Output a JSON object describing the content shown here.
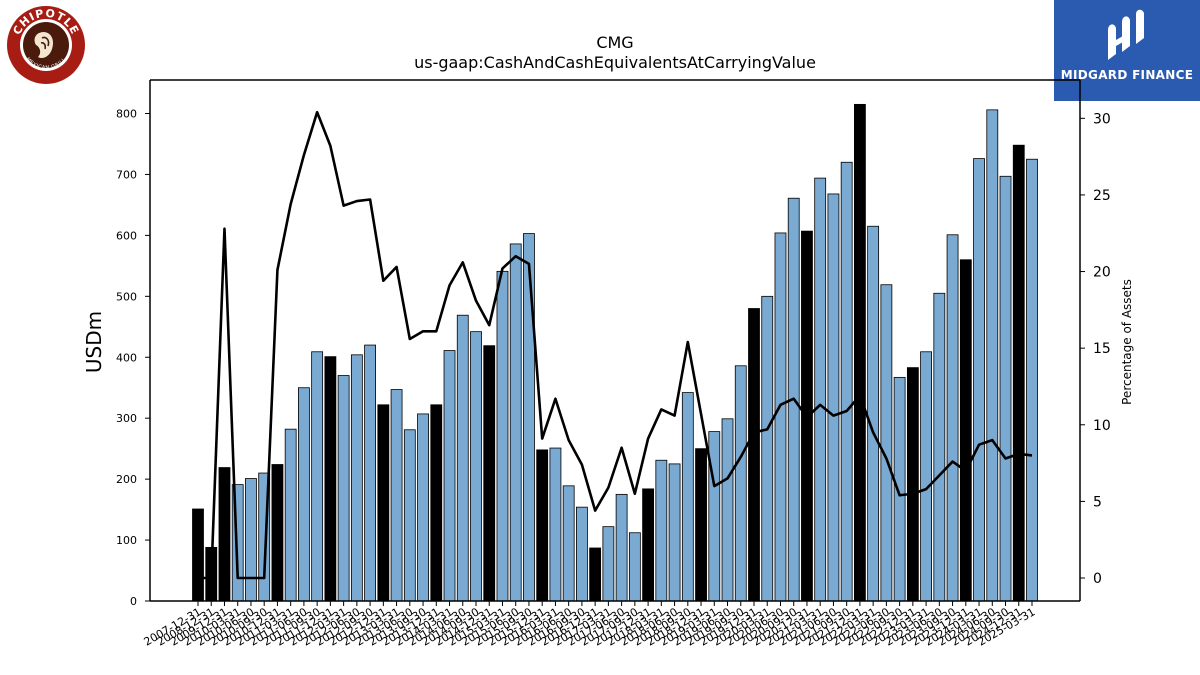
{
  "logos": {
    "left_text": "CHIPOTLE",
    "left_subtext": "MEXICAN GRILL",
    "right_text": "MIDGARD FINANCE"
  },
  "chart_data": {
    "type": "bar",
    "title": "CMG",
    "subtitle": "us-gaap:CashAndCashEquivalentsAtCarryingValue",
    "ylabel": "USDm",
    "y2label": "Percentage of Assets",
    "ylim": [
      0,
      855
    ],
    "y2lim": [
      -1.5,
      32.5
    ],
    "yticks": [
      0,
      100,
      200,
      300,
      400,
      500,
      600,
      700,
      800
    ],
    "y2ticks": [
      0,
      5,
      10,
      15,
      20,
      25,
      30
    ],
    "colors": {
      "annual": "#000000",
      "quarterly": "#7aaad2",
      "line": "#000000"
    },
    "categories": [
      "2007-12-31",
      "2008-12-31",
      "2009-12-31",
      "2010-03-31",
      "2010-06-30",
      "2010-09-30",
      "2010-12-31",
      "2011-03-31",
      "2011-06-30",
      "2011-09-30",
      "2011-12-31",
      "2012-03-31",
      "2012-06-30",
      "2012-09-30",
      "2012-12-31",
      "2013-03-31",
      "2013-06-30",
      "2013-09-30",
      "2013-12-31",
      "2014-03-31",
      "2014-06-30",
      "2014-09-30",
      "2014-12-31",
      "2015-03-31",
      "2015-06-30",
      "2015-09-30",
      "2015-12-31",
      "2016-03-31",
      "2016-06-30",
      "2016-09-30",
      "2016-12-31",
      "2017-03-31",
      "2017-06-30",
      "2017-09-30",
      "2017-12-31",
      "2018-03-31",
      "2018-06-30",
      "2018-09-30",
      "2018-12-31",
      "2019-03-31",
      "2019-06-30",
      "2019-09-30",
      "2019-12-31",
      "2020-03-31",
      "2020-06-30",
      "2020-09-30",
      "2020-12-31",
      "2021-03-31",
      "2021-06-30",
      "2021-09-30",
      "2021-12-31",
      "2022-03-31",
      "2022-06-30",
      "2022-09-30",
      "2022-12-31",
      "2023-03-31",
      "2023-06-30",
      "2023-09-30",
      "2023-12-31",
      "2024-03-31",
      "2024-06-30",
      "2024-09-30",
      "2024-12-31",
      "2025-03-31"
    ],
    "annual": [
      true,
      true,
      true,
      false,
      false,
      false,
      true,
      false,
      false,
      false,
      true,
      false,
      false,
      false,
      true,
      false,
      false,
      false,
      true,
      false,
      false,
      false,
      true,
      false,
      false,
      false,
      true,
      false,
      false,
      false,
      true,
      false,
      false,
      false,
      true,
      false,
      false,
      false,
      true,
      false,
      false,
      false,
      true,
      false,
      false,
      false,
      true,
      false,
      false,
      false,
      true,
      false,
      false,
      false,
      true,
      false,
      false,
      false,
      true,
      false,
      false,
      false,
      true,
      false
    ],
    "values": [
      151,
      88,
      219,
      191,
      201,
      210,
      224,
      282,
      350,
      409,
      401,
      370,
      404,
      420,
      322,
      347,
      281,
      307,
      322,
      411,
      469,
      442,
      419,
      541,
      586,
      603,
      248,
      251,
      189,
      154,
      87,
      122,
      175,
      112,
      184,
      231,
      225,
      342,
      250,
      278,
      299,
      386,
      480,
      500,
      604,
      661,
      607,
      694,
      668,
      720,
      815,
      615,
      519,
      367,
      383,
      409,
      505,
      601,
      560,
      726,
      806,
      697,
      748,
      725
    ],
    "percent": [
      0,
      0,
      22.8,
      0,
      0,
      0,
      20.1,
      24.4,
      27.6,
      30.4,
      28.2,
      24.3,
      24.6,
      24.7,
      19.4,
      20.3,
      15.6,
      16.1,
      16.1,
      19.1,
      20.6,
      18.1,
      16.5,
      20.2,
      21.0,
      20.5,
      9.1,
      11.7,
      9.0,
      7.4,
      4.4,
      5.9,
      8.5,
      5.5,
      9.1,
      11.0,
      10.6,
      15.4,
      10.7,
      6.0,
      6.5,
      7.9,
      9.5,
      9.7,
      11.3,
      11.7,
      10.5,
      11.3,
      10.6,
      10.9,
      11.9,
      9.5,
      7.8,
      5.4,
      5.5,
      5.8,
      6.7,
      7.6,
      7.0,
      8.7,
      9.0,
      7.8,
      8.1,
      8.0
    ]
  }
}
